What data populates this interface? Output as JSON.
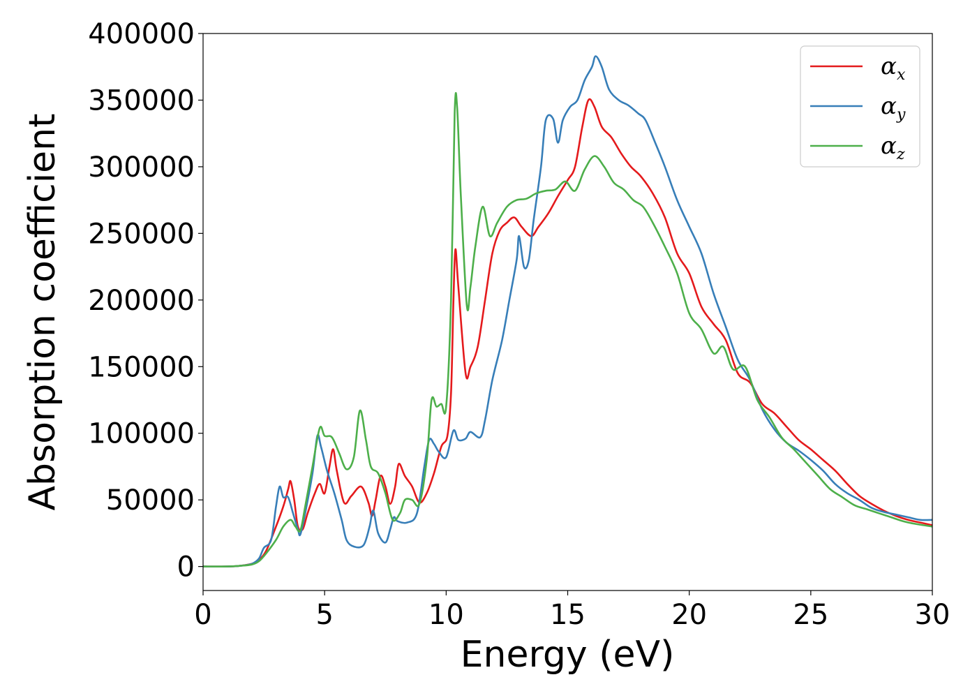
{
  "chart_data": {
    "type": "line",
    "title": "",
    "xlabel": "Energy (eV)",
    "ylabel": "Absorption coefficient",
    "xlim": [
      0,
      30
    ],
    "ylim": [
      -18000,
      400000
    ],
    "xticks": [
      0,
      5,
      10,
      15,
      20,
      25,
      30
    ],
    "yticks": [
      0,
      50000,
      100000,
      150000,
      200000,
      250000,
      300000,
      350000,
      400000
    ],
    "xtick_labels": [
      "0",
      "5",
      "10",
      "15",
      "20",
      "25",
      "30"
    ],
    "ytick_labels": [
      "0",
      "50000",
      "100000",
      "150000",
      "200000",
      "250000",
      "300000",
      "350000",
      "400000"
    ],
    "grid": false,
    "legend_position": "top-right",
    "series": [
      {
        "name": "α_x",
        "legend_base": "α",
        "legend_sub": "x",
        "color": "#e41a1c",
        "points": [
          [
            0,
            0
          ],
          [
            1,
            0
          ],
          [
            1.5,
            500
          ],
          [
            2,
            2000
          ],
          [
            2.3,
            5000
          ],
          [
            2.6,
            12000
          ],
          [
            3.0,
            30000
          ],
          [
            3.3,
            45000
          ],
          [
            3.5,
            58000
          ],
          [
            3.6,
            64000
          ],
          [
            3.75,
            50000
          ],
          [
            3.9,
            30000
          ],
          [
            4.1,
            28000
          ],
          [
            4.3,
            40000
          ],
          [
            4.6,
            55000
          ],
          [
            4.8,
            62000
          ],
          [
            5.0,
            55000
          ],
          [
            5.2,
            75000
          ],
          [
            5.35,
            88000
          ],
          [
            5.5,
            72000
          ],
          [
            5.8,
            48000
          ],
          [
            6.1,
            53000
          ],
          [
            6.5,
            60000
          ],
          [
            6.8,
            48000
          ],
          [
            6.95,
            38000
          ],
          [
            7.1,
            50000
          ],
          [
            7.3,
            68000
          ],
          [
            7.5,
            60000
          ],
          [
            7.7,
            47000
          ],
          [
            7.9,
            60000
          ],
          [
            8.05,
            77000
          ],
          [
            8.3,
            68000
          ],
          [
            8.6,
            60000
          ],
          [
            8.9,
            48000
          ],
          [
            9.2,
            55000
          ],
          [
            9.5,
            70000
          ],
          [
            9.8,
            90000
          ],
          [
            10.05,
            98000
          ],
          [
            10.2,
            130000
          ],
          [
            10.3,
            200000
          ],
          [
            10.38,
            238000
          ],
          [
            10.5,
            210000
          ],
          [
            10.8,
            145000
          ],
          [
            11.0,
            150000
          ],
          [
            11.3,
            165000
          ],
          [
            11.6,
            200000
          ],
          [
            11.9,
            235000
          ],
          [
            12.2,
            252000
          ],
          [
            12.5,
            258000
          ],
          [
            12.8,
            262000
          ],
          [
            13.1,
            255000
          ],
          [
            13.5,
            248000
          ],
          [
            13.8,
            255000
          ],
          [
            14.2,
            265000
          ],
          [
            14.6,
            278000
          ],
          [
            15.0,
            290000
          ],
          [
            15.3,
            300000
          ],
          [
            15.6,
            330000
          ],
          [
            15.85,
            350000
          ],
          [
            16.1,
            345000
          ],
          [
            16.4,
            330000
          ],
          [
            16.8,
            322000
          ],
          [
            17.2,
            310000
          ],
          [
            17.6,
            300000
          ],
          [
            18.0,
            293000
          ],
          [
            18.5,
            280000
          ],
          [
            19.0,
            262000
          ],
          [
            19.5,
            235000
          ],
          [
            20.0,
            220000
          ],
          [
            20.5,
            195000
          ],
          [
            21.0,
            182000
          ],
          [
            21.5,
            170000
          ],
          [
            22.0,
            145000
          ],
          [
            22.5,
            138000
          ],
          [
            23.0,
            122000
          ],
          [
            23.5,
            115000
          ],
          [
            24.0,
            105000
          ],
          [
            24.5,
            95000
          ],
          [
            25.0,
            88000
          ],
          [
            25.5,
            80000
          ],
          [
            26.0,
            72000
          ],
          [
            26.5,
            62000
          ],
          [
            27.0,
            53000
          ],
          [
            27.5,
            47000
          ],
          [
            28.0,
            42000
          ],
          [
            28.5,
            38000
          ],
          [
            29.0,
            35000
          ],
          [
            29.5,
            33000
          ],
          [
            30.0,
            31000
          ]
        ]
      },
      {
        "name": "α_y",
        "legend_base": "α",
        "legend_sub": "y",
        "color": "#377eb8",
        "points": [
          [
            0,
            0
          ],
          [
            1,
            0
          ],
          [
            1.5,
            500
          ],
          [
            2,
            2000
          ],
          [
            2.3,
            6000
          ],
          [
            2.5,
            14000
          ],
          [
            2.8,
            20000
          ],
          [
            3.0,
            45000
          ],
          [
            3.15,
            60000
          ],
          [
            3.3,
            52000
          ],
          [
            3.5,
            52000
          ],
          [
            3.7,
            40000
          ],
          [
            3.9,
            28000
          ],
          [
            4.0,
            24000
          ],
          [
            4.2,
            40000
          ],
          [
            4.5,
            70000
          ],
          [
            4.7,
            98000
          ],
          [
            4.85,
            90000
          ],
          [
            5.1,
            72000
          ],
          [
            5.4,
            55000
          ],
          [
            5.7,
            35000
          ],
          [
            5.9,
            20000
          ],
          [
            6.2,
            15000
          ],
          [
            6.6,
            16000
          ],
          [
            6.85,
            30000
          ],
          [
            7.0,
            42000
          ],
          [
            7.2,
            25000
          ],
          [
            7.5,
            18000
          ],
          [
            7.7,
            28000
          ],
          [
            7.85,
            37000
          ],
          [
            8.0,
            34000
          ],
          [
            8.4,
            33000
          ],
          [
            8.8,
            40000
          ],
          [
            9.1,
            75000
          ],
          [
            9.3,
            95000
          ],
          [
            9.5,
            92000
          ],
          [
            9.7,
            86000
          ],
          [
            10.0,
            82000
          ],
          [
            10.3,
            102000
          ],
          [
            10.5,
            95000
          ],
          [
            10.8,
            96000
          ],
          [
            11.0,
            101000
          ],
          [
            11.4,
            97000
          ],
          [
            11.6,
            110000
          ],
          [
            11.9,
            140000
          ],
          [
            12.3,
            170000
          ],
          [
            12.6,
            200000
          ],
          [
            12.9,
            230000
          ],
          [
            13.0,
            248000
          ],
          [
            13.2,
            225000
          ],
          [
            13.4,
            230000
          ],
          [
            13.6,
            260000
          ],
          [
            13.9,
            300000
          ],
          [
            14.1,
            335000
          ],
          [
            14.4,
            336000
          ],
          [
            14.6,
            318000
          ],
          [
            14.8,
            335000
          ],
          [
            15.1,
            345000
          ],
          [
            15.4,
            350000
          ],
          [
            15.7,
            365000
          ],
          [
            16.0,
            375000
          ],
          [
            16.15,
            383000
          ],
          [
            16.4,
            375000
          ],
          [
            16.7,
            358000
          ],
          [
            17.1,
            350000
          ],
          [
            17.5,
            346000
          ],
          [
            17.9,
            340000
          ],
          [
            18.2,
            335000
          ],
          [
            18.6,
            318000
          ],
          [
            19.0,
            300000
          ],
          [
            19.5,
            275000
          ],
          [
            20.0,
            255000
          ],
          [
            20.5,
            235000
          ],
          [
            21.0,
            205000
          ],
          [
            21.5,
            180000
          ],
          [
            22.0,
            155000
          ],
          [
            22.5,
            140000
          ],
          [
            23.0,
            118000
          ],
          [
            23.5,
            103000
          ],
          [
            24.0,
            93000
          ],
          [
            24.5,
            87000
          ],
          [
            25.0,
            80000
          ],
          [
            25.5,
            72000
          ],
          [
            26.0,
            62000
          ],
          [
            26.5,
            55000
          ],
          [
            27.0,
            50000
          ],
          [
            27.5,
            44000
          ],
          [
            28.0,
            41000
          ],
          [
            28.5,
            39000
          ],
          [
            29.0,
            37000
          ],
          [
            29.5,
            35000
          ],
          [
            30.0,
            35000
          ]
        ]
      },
      {
        "name": "α_z",
        "legend_base": "α",
        "legend_sub": "z",
        "color": "#4daf4a",
        "points": [
          [
            0,
            0
          ],
          [
            1,
            0
          ],
          [
            1.5,
            500
          ],
          [
            2,
            1500
          ],
          [
            2.3,
            4000
          ],
          [
            2.6,
            10000
          ],
          [
            3.0,
            20000
          ],
          [
            3.3,
            30000
          ],
          [
            3.6,
            35000
          ],
          [
            3.8,
            30000
          ],
          [
            4.0,
            27000
          ],
          [
            4.2,
            45000
          ],
          [
            4.5,
            75000
          ],
          [
            4.8,
            104000
          ],
          [
            5.0,
            98000
          ],
          [
            5.3,
            97000
          ],
          [
            5.6,
            85000
          ],
          [
            5.9,
            73000
          ],
          [
            6.2,
            82000
          ],
          [
            6.45,
            117000
          ],
          [
            6.7,
            95000
          ],
          [
            6.9,
            75000
          ],
          [
            7.2,
            70000
          ],
          [
            7.5,
            55000
          ],
          [
            7.8,
            35000
          ],
          [
            8.1,
            40000
          ],
          [
            8.3,
            50000
          ],
          [
            8.6,
            50000
          ],
          [
            8.9,
            47000
          ],
          [
            9.2,
            80000
          ],
          [
            9.4,
            125000
          ],
          [
            9.6,
            120000
          ],
          [
            9.8,
            122000
          ],
          [
            10.0,
            120000
          ],
          [
            10.2,
            200000
          ],
          [
            10.35,
            340000
          ],
          [
            10.45,
            345000
          ],
          [
            10.6,
            280000
          ],
          [
            10.85,
            196000
          ],
          [
            11.0,
            210000
          ],
          [
            11.2,
            240000
          ],
          [
            11.5,
            270000
          ],
          [
            11.8,
            248000
          ],
          [
            12.1,
            258000
          ],
          [
            12.5,
            270000
          ],
          [
            12.9,
            275000
          ],
          [
            13.3,
            276000
          ],
          [
            13.7,
            280000
          ],
          [
            14.1,
            282000
          ],
          [
            14.5,
            283000
          ],
          [
            14.9,
            289000
          ],
          [
            15.3,
            282000
          ],
          [
            15.7,
            298000
          ],
          [
            16.1,
            308000
          ],
          [
            16.5,
            300000
          ],
          [
            16.9,
            288000
          ],
          [
            17.3,
            283000
          ],
          [
            17.7,
            275000
          ],
          [
            18.1,
            270000
          ],
          [
            18.5,
            258000
          ],
          [
            19.0,
            240000
          ],
          [
            19.5,
            220000
          ],
          [
            20.0,
            190000
          ],
          [
            20.5,
            178000
          ],
          [
            21.0,
            160000
          ],
          [
            21.4,
            165000
          ],
          [
            21.8,
            148000
          ],
          [
            22.3,
            150000
          ],
          [
            22.8,
            125000
          ],
          [
            23.3,
            112000
          ],
          [
            23.8,
            97000
          ],
          [
            24.3,
            88000
          ],
          [
            24.8,
            78000
          ],
          [
            25.3,
            68000
          ],
          [
            25.8,
            58000
          ],
          [
            26.3,
            52000
          ],
          [
            26.8,
            46000
          ],
          [
            27.3,
            43000
          ],
          [
            27.8,
            40000
          ],
          [
            28.3,
            37000
          ],
          [
            28.8,
            34000
          ],
          [
            29.3,
            32000
          ],
          [
            30.0,
            30000
          ]
        ]
      }
    ]
  }
}
